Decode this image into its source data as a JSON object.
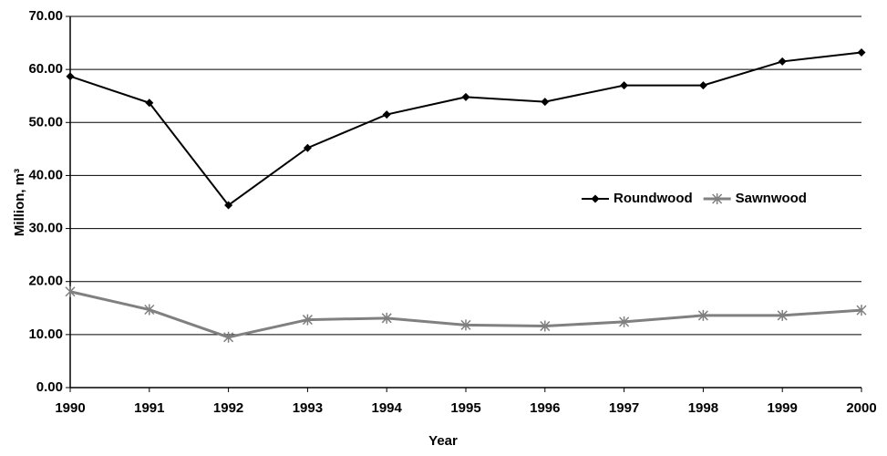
{
  "chart_data": {
    "type": "line",
    "x_label": "Year",
    "y_label": "Million, m³",
    "x": [
      1990,
      1991,
      1992,
      1993,
      1994,
      1995,
      1996,
      1997,
      1998,
      1999,
      2000
    ],
    "xlim": [
      1990,
      2000
    ],
    "xticks": [
      1990,
      1991,
      1992,
      1993,
      1994,
      1995,
      1996,
      1997,
      1998,
      1999,
      2000
    ],
    "ylim": [
      0,
      70
    ],
    "yticks": [
      {
        "value": 0,
        "label": "0.00"
      },
      {
        "value": 10,
        "label": "10.00"
      },
      {
        "value": 20,
        "label": "20.00"
      },
      {
        "value": 30,
        "label": "30.00"
      },
      {
        "value": 40,
        "label": "40.00"
      },
      {
        "value": 50,
        "label": "50.00"
      },
      {
        "value": 60,
        "label": "60.00"
      },
      {
        "value": 70,
        "label": "70.00"
      }
    ],
    "grid": true,
    "legend": "right",
    "series": [
      {
        "name": "Roundwood",
        "color": "#000000",
        "marker": "diamond",
        "values": [
          58.7,
          53.7,
          34.4,
          45.2,
          51.5,
          54.8,
          53.9,
          57.0,
          57.0,
          61.5,
          63.2
        ]
      },
      {
        "name": "Sawnwood",
        "color": "#808080",
        "marker": "star",
        "values": [
          18.1,
          14.7,
          9.5,
          12.8,
          13.1,
          11.8,
          11.6,
          12.4,
          13.6,
          13.6,
          14.6
        ]
      }
    ]
  }
}
